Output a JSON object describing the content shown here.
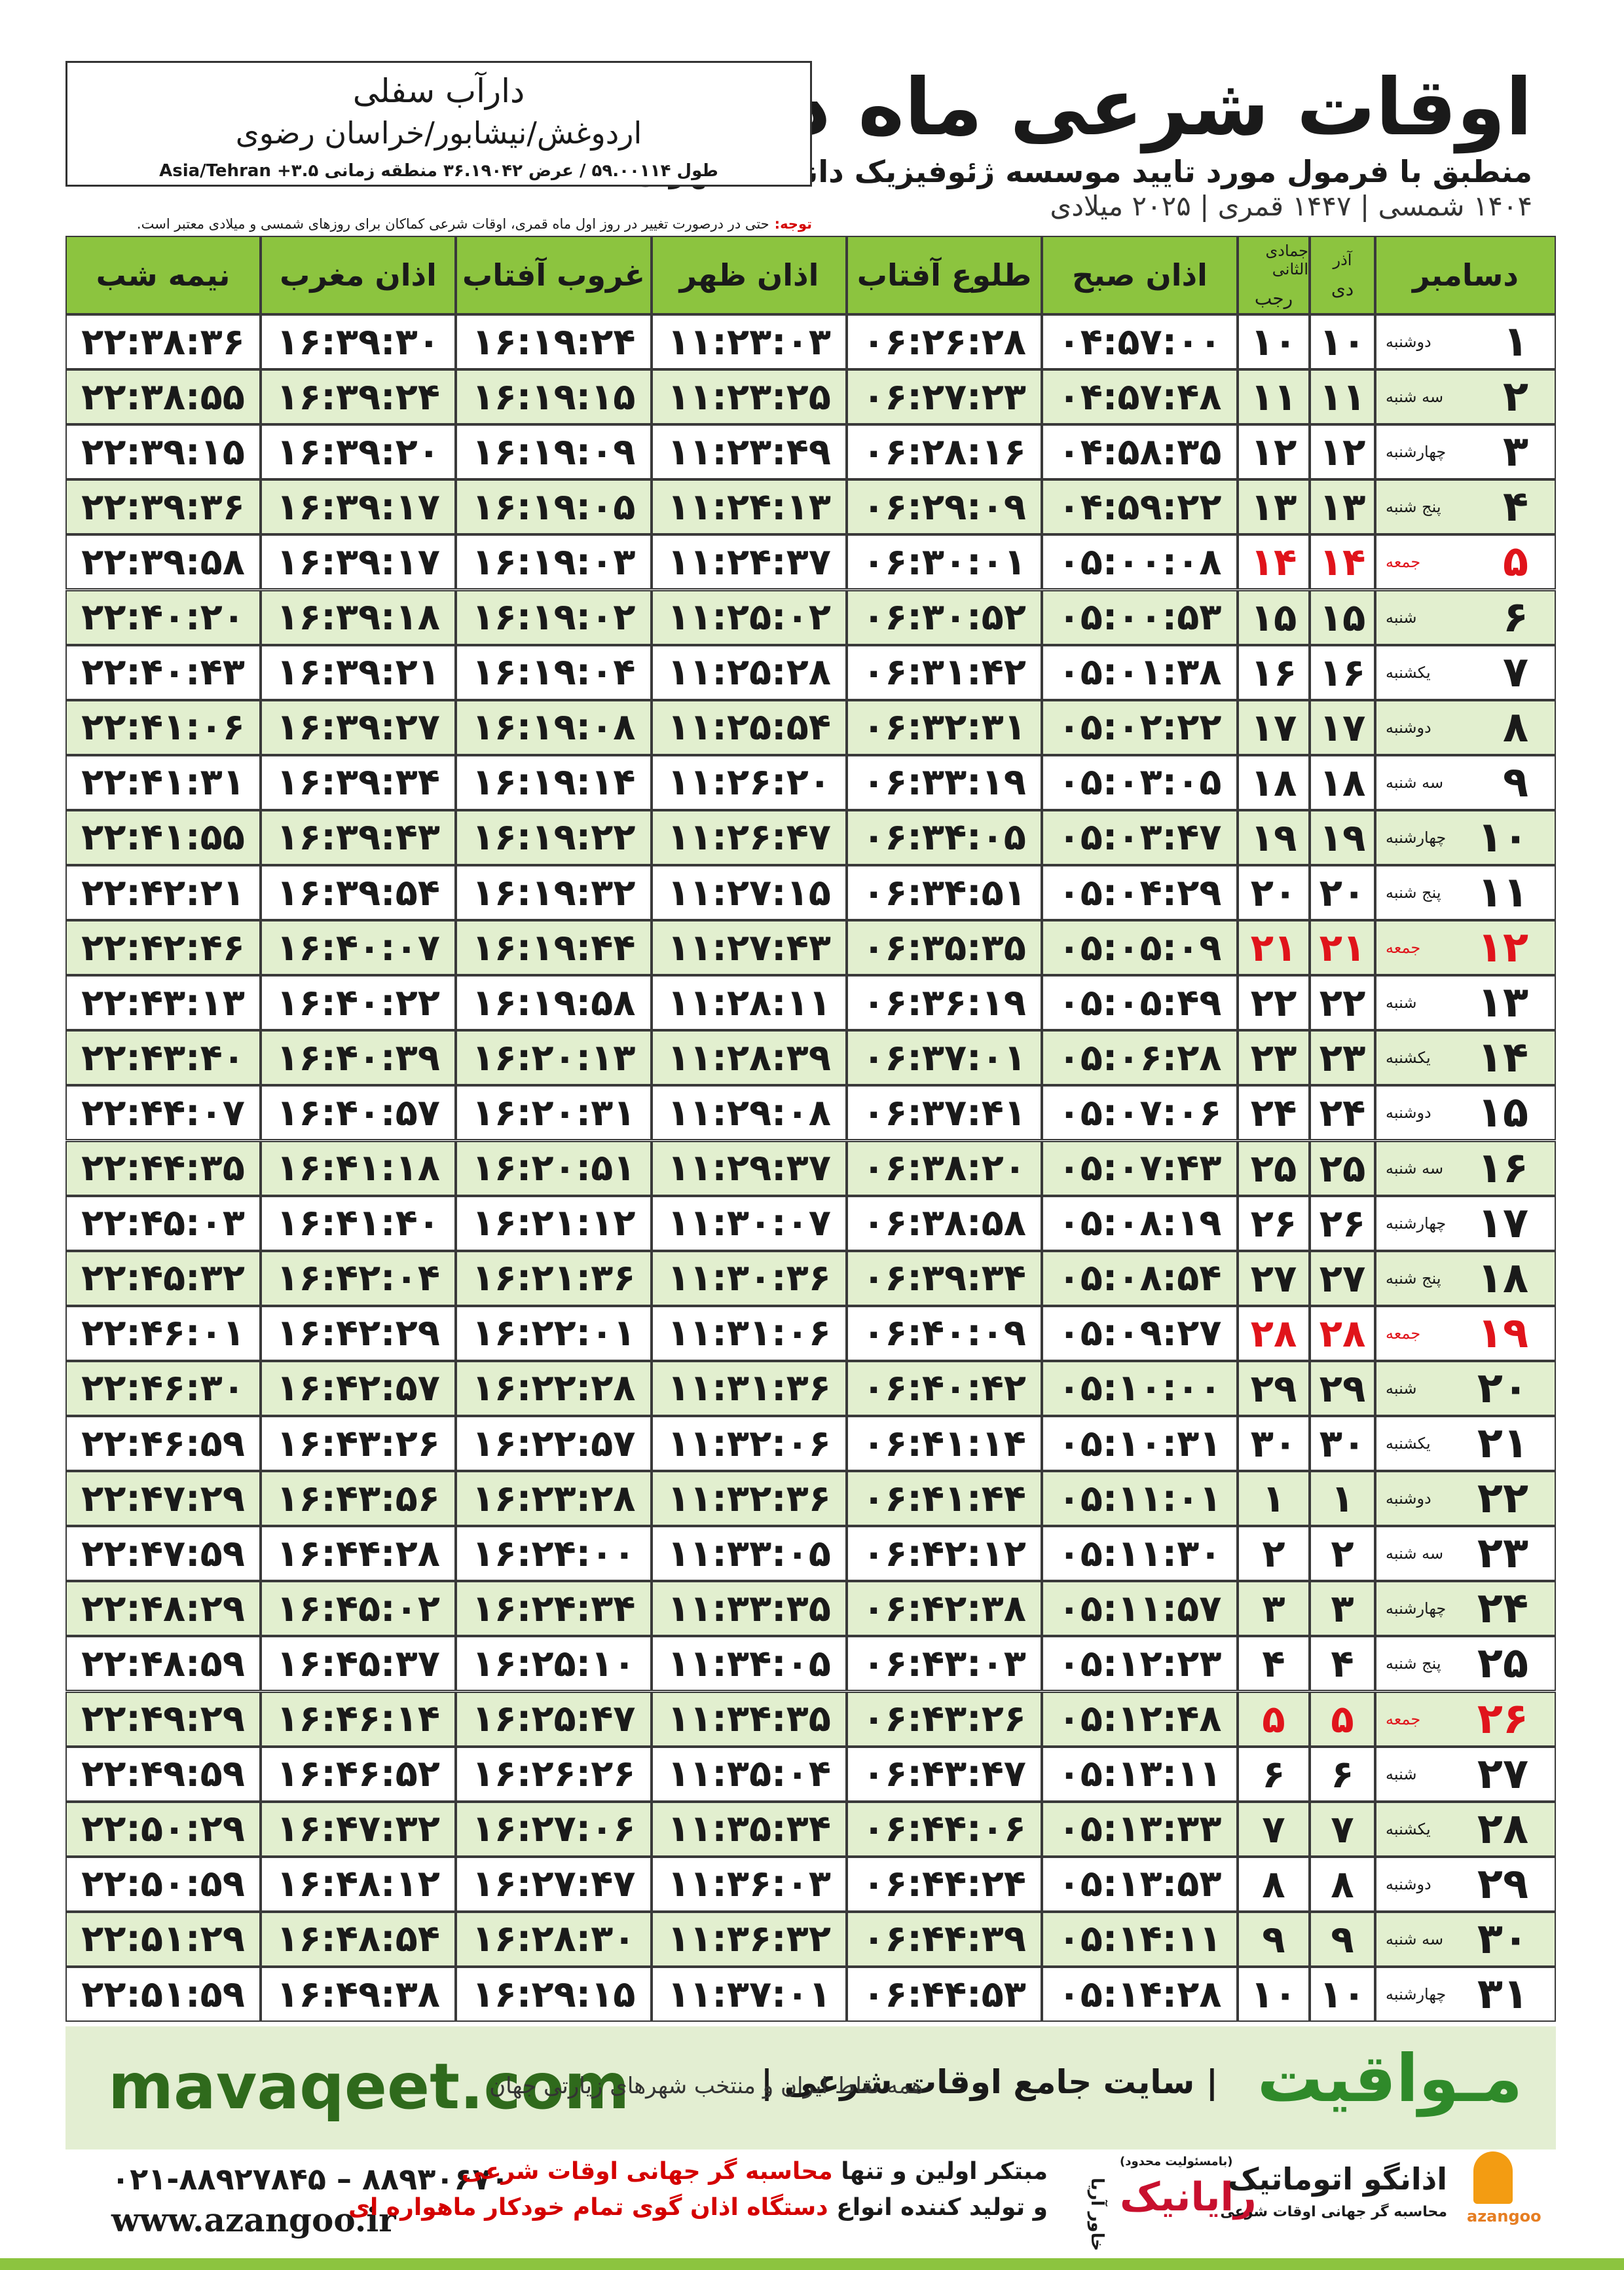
{
  "header": {
    "title": "اوقات شرعی ماه دسامبر",
    "subtitle": "منطبق با فرمول مورد تایید موسسه ژئوفیزیک دانشگاه تهران",
    "dates": "۱۴۰۴ شمسی | ۱۴۴۷ قمری | ۲۰۲۵ میلادی"
  },
  "location": {
    "name": "دارآب سفلی",
    "path": "اردوغش/نیشابور/خراسان رضوی",
    "coords": "طول ۵۹.۰۰۱۱۴ / عرض ۳۶.۱۹۰۴۲ منطقه زمانی ۳.۵+ Asia/Tehran"
  },
  "note": {
    "label": "توجه:",
    "text": "حتی در درصورت تغییر در روز اول ماه قمری، اوقات شرعی کماکان برای روزهای شمسی و میلادی معتبر است."
  },
  "table": {
    "headers": [
      "دسامبر",
      [
        "آذر",
        "دی"
      ],
      [
        "جمادی الثانی",
        "رجب"
      ],
      "اذان صبح",
      "طلوع آفتاب",
      "اذان ظهر",
      "غروب آفتاب",
      "اذان مغرب",
      "نیمه شب"
    ],
    "rows": [
      {
        "cells": [
          "۱",
          "دوشنبه",
          "۱۰",
          "۱۰",
          "۰۴:۵۷:۰۰",
          "۰۶:۲۶:۲۸",
          "۱۱:۲۳:۰۳",
          "۱۶:۱۹:۲۴",
          "۱۶:۳۹:۳۰",
          "۲۲:۳۸:۳۶"
        ]
      },
      {
        "cells": [
          "۲",
          "سه شنبه",
          "۱۱",
          "۱۱",
          "۰۴:۵۷:۴۸",
          "۰۶:۲۷:۲۳",
          "۱۱:۲۳:۲۵",
          "۱۶:۱۹:۱۵",
          "۱۶:۳۹:۲۴",
          "۲۲:۳۸:۵۵"
        ]
      },
      {
        "cells": [
          "۳",
          "چهارشنبه",
          "۱۲",
          "۱۲",
          "۰۴:۵۸:۳۵",
          "۰۶:۲۸:۱۶",
          "۱۱:۲۳:۴۹",
          "۱۶:۱۹:۰۹",
          "۱۶:۳۹:۲۰",
          "۲۲:۳۹:۱۵"
        ]
      },
      {
        "cells": [
          "۴",
          "پنج شنبه",
          "۱۳",
          "۱۳",
          "۰۴:۵۹:۲۲",
          "۰۶:۲۹:۰۹",
          "۱۱:۲۴:۱۳",
          "۱۶:۱۹:۰۵",
          "۱۶:۳۹:۱۷",
          "۲۲:۳۹:۳۶"
        ]
      },
      {
        "cells": [
          "۵",
          "جمعه",
          "۱۴",
          "۱۴",
          "۰۵:۰۰:۰۸",
          "۰۶:۳۰:۰۱",
          "۱۱:۲۴:۳۷",
          "۱۶:۱۹:۰۳",
          "۱۶:۳۹:۱۷",
          "۲۲:۳۹:۵۸"
        ],
        "color": "#e0141b"
      },
      {
        "cells": [
          "۶",
          "شنبه",
          "۱۵",
          "۱۵",
          "۰۵:۰۰:۵۳",
          "۰۶:۳۰:۵۲",
          "۱۱:۲۵:۰۲",
          "۱۶:۱۹:۰۲",
          "۱۶:۳۹:۱۸",
          "۲۲:۴۰:۲۰"
        ]
      },
      {
        "cells": [
          "۷",
          "یکشنبه",
          "۱۶",
          "۱۶",
          "۰۵:۰۱:۳۸",
          "۰۶:۳۱:۴۲",
          "۱۱:۲۵:۲۸",
          "۱۶:۱۹:۰۴",
          "۱۶:۳۹:۲۱",
          "۲۲:۴۰:۴۳"
        ]
      },
      {
        "cells": [
          "۸",
          "دوشنبه",
          "۱۷",
          "۱۷",
          "۰۵:۰۲:۲۲",
          "۰۶:۳۲:۳۱",
          "۱۱:۲۵:۵۴",
          "۱۶:۱۹:۰۸",
          "۱۶:۳۹:۲۷",
          "۲۲:۴۱:۰۶"
        ]
      },
      {
        "cells": [
          "۹",
          "سه شنبه",
          "۱۸",
          "۱۸",
          "۰۵:۰۳:۰۵",
          "۰۶:۳۳:۱۹",
          "۱۱:۲۶:۲۰",
          "۱۶:۱۹:۱۴",
          "۱۶:۳۹:۳۴",
          "۲۲:۴۱:۳۱"
        ]
      },
      {
        "cells": [
          "۱۰",
          "چهارشنبه",
          "۱۹",
          "۱۹",
          "۰۵:۰۳:۴۷",
          "۰۶:۳۴:۰۵",
          "۱۱:۲۶:۴۷",
          "۱۶:۱۹:۲۲",
          "۱۶:۳۹:۴۳",
          "۲۲:۴۱:۵۵"
        ]
      },
      {
        "cells": [
          "۱۱",
          "پنج شنبه",
          "۲۰",
          "۲۰",
          "۰۵:۰۴:۲۹",
          "۰۶:۳۴:۵۱",
          "۱۱:۲۷:۱۵",
          "۱۶:۱۹:۳۲",
          "۱۶:۳۹:۵۴",
          "۲۲:۴۲:۲۱"
        ]
      },
      {
        "cells": [
          "۱۲",
          "جمعه",
          "۲۱",
          "۲۱",
          "۰۵:۰۵:۰۹",
          "۰۶:۳۵:۳۵",
          "۱۱:۲۷:۴۳",
          "۱۶:۱۹:۴۴",
          "۱۶:۴۰:۰۷",
          "۲۲:۴۲:۴۶"
        ],
        "color": "#e0141b"
      },
      {
        "cells": [
          "۱۳",
          "شنبه",
          "۲۲",
          "۲۲",
          "۰۵:۰۵:۴۹",
          "۰۶:۳۶:۱۹",
          "۱۱:۲۸:۱۱",
          "۱۶:۱۹:۵۸",
          "۱۶:۴۰:۲۲",
          "۲۲:۴۳:۱۳"
        ]
      },
      {
        "cells": [
          "۱۴",
          "یکشنبه",
          "۲۳",
          "۲۳",
          "۰۵:۰۶:۲۸",
          "۰۶:۳۷:۰۱",
          "۱۱:۲۸:۳۹",
          "۱۶:۲۰:۱۳",
          "۱۶:۴۰:۳۹",
          "۲۲:۴۳:۴۰"
        ]
      },
      {
        "cells": [
          "۱۵",
          "دوشنبه",
          "۲۴",
          "۲۴",
          "۰۵:۰۷:۰۶",
          "۰۶:۳۷:۴۱",
          "۱۱:۲۹:۰۸",
          "۱۶:۲۰:۳۱",
          "۱۶:۴۰:۵۷",
          "۲۲:۴۴:۰۷"
        ]
      },
      {
        "cells": [
          "۱۶",
          "سه شنبه",
          "۲۵",
          "۲۵",
          "۰۵:۰۷:۴۳",
          "۰۶:۳۸:۲۰",
          "۱۱:۲۹:۳۷",
          "۱۶:۲۰:۵۱",
          "۱۶:۴۱:۱۸",
          "۲۲:۴۴:۳۵"
        ]
      },
      {
        "cells": [
          "۱۷",
          "چهارشنبه",
          "۲۶",
          "۲۶",
          "۰۵:۰۸:۱۹",
          "۰۶:۳۸:۵۸",
          "۱۱:۳۰:۰۷",
          "۱۶:۲۱:۱۲",
          "۱۶:۴۱:۴۰",
          "۲۲:۴۵:۰۳"
        ]
      },
      {
        "cells": [
          "۱۸",
          "پنج شنبه",
          "۲۷",
          "۲۷",
          "۰۵:۰۸:۵۴",
          "۰۶:۳۹:۳۴",
          "۱۱:۳۰:۳۶",
          "۱۶:۲۱:۳۶",
          "۱۶:۴۲:۰۴",
          "۲۲:۴۵:۳۲"
        ]
      },
      {
        "cells": [
          "۱۹",
          "جمعه",
          "۲۸",
          "۲۸",
          "۰۵:۰۹:۲۷",
          "۰۶:۴۰:۰۹",
          "۱۱:۳۱:۰۶",
          "۱۶:۲۲:۰۱",
          "۱۶:۴۲:۲۹",
          "۲۲:۴۶:۰۱"
        ],
        "color": "#e0141b"
      },
      {
        "cells": [
          "۲۰",
          "شنبه",
          "۲۹",
          "۲۹",
          "۰۵:۱۰:۰۰",
          "۰۶:۴۰:۴۲",
          "۱۱:۳۱:۳۶",
          "۱۶:۲۲:۲۸",
          "۱۶:۴۲:۵۷",
          "۲۲:۴۶:۳۰"
        ]
      },
      {
        "cells": [
          "۲۱",
          "یکشنبه",
          "۳۰",
          "۳۰",
          "۰۵:۱۰:۳۱",
          "۰۶:۴۱:۱۴",
          "۱۱:۳۲:۰۶",
          "۱۶:۲۲:۵۷",
          "۱۶:۴۳:۲۶",
          "۲۲:۴۶:۵۹"
        ]
      },
      {
        "cells": [
          "۲۲",
          "دوشنبه",
          "۱",
          "۱",
          "۰۵:۱۱:۰۱",
          "۰۶:۴۱:۴۴",
          "۱۱:۳۲:۳۶",
          "۱۶:۲۳:۲۸",
          "۱۶:۴۳:۵۶",
          "۲۲:۴۷:۲۹"
        ]
      },
      {
        "cells": [
          "۲۳",
          "سه شنبه",
          "۲",
          "۲",
          "۰۵:۱۱:۳۰",
          "۰۶:۴۲:۱۲",
          "۱۱:۳۳:۰۵",
          "۱۶:۲۴:۰۰",
          "۱۶:۴۴:۲۸",
          "۲۲:۴۷:۵۹"
        ]
      },
      {
        "cells": [
          "۲۴",
          "چهارشنبه",
          "۳",
          "۳",
          "۰۵:۱۱:۵۷",
          "۰۶:۴۲:۳۸",
          "۱۱:۳۳:۳۵",
          "۱۶:۲۴:۳۴",
          "۱۶:۴۵:۰۲",
          "۲۲:۴۸:۲۹"
        ]
      },
      {
        "cells": [
          "۲۵",
          "پنج شنبه",
          "۴",
          "۴",
          "۰۵:۱۲:۲۳",
          "۰۶:۴۳:۰۳",
          "۱۱:۳۴:۰۵",
          "۱۶:۲۵:۱۰",
          "۱۶:۴۵:۳۷",
          "۲۲:۴۸:۵۹"
        ]
      },
      {
        "cells": [
          "۲۶",
          "جمعه",
          "۵",
          "۵",
          "۰۵:۱۲:۴۸",
          "۰۶:۴۳:۲۶",
          "۱۱:۳۴:۳۵",
          "۱۶:۲۵:۴۷",
          "۱۶:۴۶:۱۴",
          "۲۲:۴۹:۲۹"
        ],
        "color": "#e0141b"
      },
      {
        "cells": [
          "۲۷",
          "شنبه",
          "۶",
          "۶",
          "۰۵:۱۳:۱۱",
          "۰۶:۴۳:۴۷",
          "۱۱:۳۵:۰۴",
          "۱۶:۲۶:۲۶",
          "۱۶:۴۶:۵۲",
          "۲۲:۴۹:۵۹"
        ]
      },
      {
        "cells": [
          "۲۸",
          "یکشنبه",
          "۷",
          "۷",
          "۰۵:۱۳:۳۳",
          "۰۶:۴۴:۰۶",
          "۱۱:۳۵:۳۴",
          "۱۶:۲۷:۰۶",
          "۱۶:۴۷:۳۲",
          "۲۲:۵۰:۲۹"
        ]
      },
      {
        "cells": [
          "۲۹",
          "دوشنبه",
          "۸",
          "۸",
          "۰۵:۱۳:۵۳",
          "۰۶:۴۴:۲۴",
          "۱۱:۳۶:۰۳",
          "۱۶:۲۷:۴۷",
          "۱۶:۴۸:۱۲",
          "۲۲:۵۰:۵۹"
        ]
      },
      {
        "cells": [
          "۳۰",
          "سه شنبه",
          "۹",
          "۹",
          "۰۵:۱۴:۱۱",
          "۰۶:۴۴:۳۹",
          "۱۱:۳۶:۳۲",
          "۱۶:۲۸:۳۰",
          "۱۶:۴۸:۵۴",
          "۲۲:۵۱:۲۹"
        ]
      },
      {
        "cells": [
          "۳۱",
          "چهارشنبه",
          "۱۰",
          "۱۰",
          "۰۵:۱۴:۲۸",
          "۰۶:۴۴:۵۳",
          "۱۱:۳۷:۰۱",
          "۱۶:۲۹:۱۵",
          "۱۶:۴۹:۳۸",
          "۲۲:۵۱:۵۹"
        ]
      }
    ]
  },
  "footer": {
    "site": "mavaqeet.com",
    "brand": "مـواقیت",
    "tagline": "| سایت جامع اوقات شرعی |",
    "description": "همه نقاط ایران و منتخب شهرهای زیارتی جهان"
  },
  "contact": {
    "phone": "۰۲۱-۸۸۹۲۷۸۴۵ – ۸۸۹۳۰۶۷۰",
    "web": "www.azangoo.ir",
    "line1": [
      "مبتکر اولین و تنها",
      "محاسبه گر جهانی اوقات شرعی"
    ],
    "line2": [
      "و تولید کننده انواع",
      "دستگاه اذان گوی تمام خودکار ماهواره ای"
    ]
  },
  "logos": {
    "raianik_note": "(بامسئولیت محدود)",
    "raianik": "رایانیک",
    "khavar": "خاور آریا",
    "azangoo": "azangoo",
    "azangoo_fa": "اذانگو اتوماتیک",
    "slogan": "محاسبه گر جهانی اوقات شرعی"
  }
}
